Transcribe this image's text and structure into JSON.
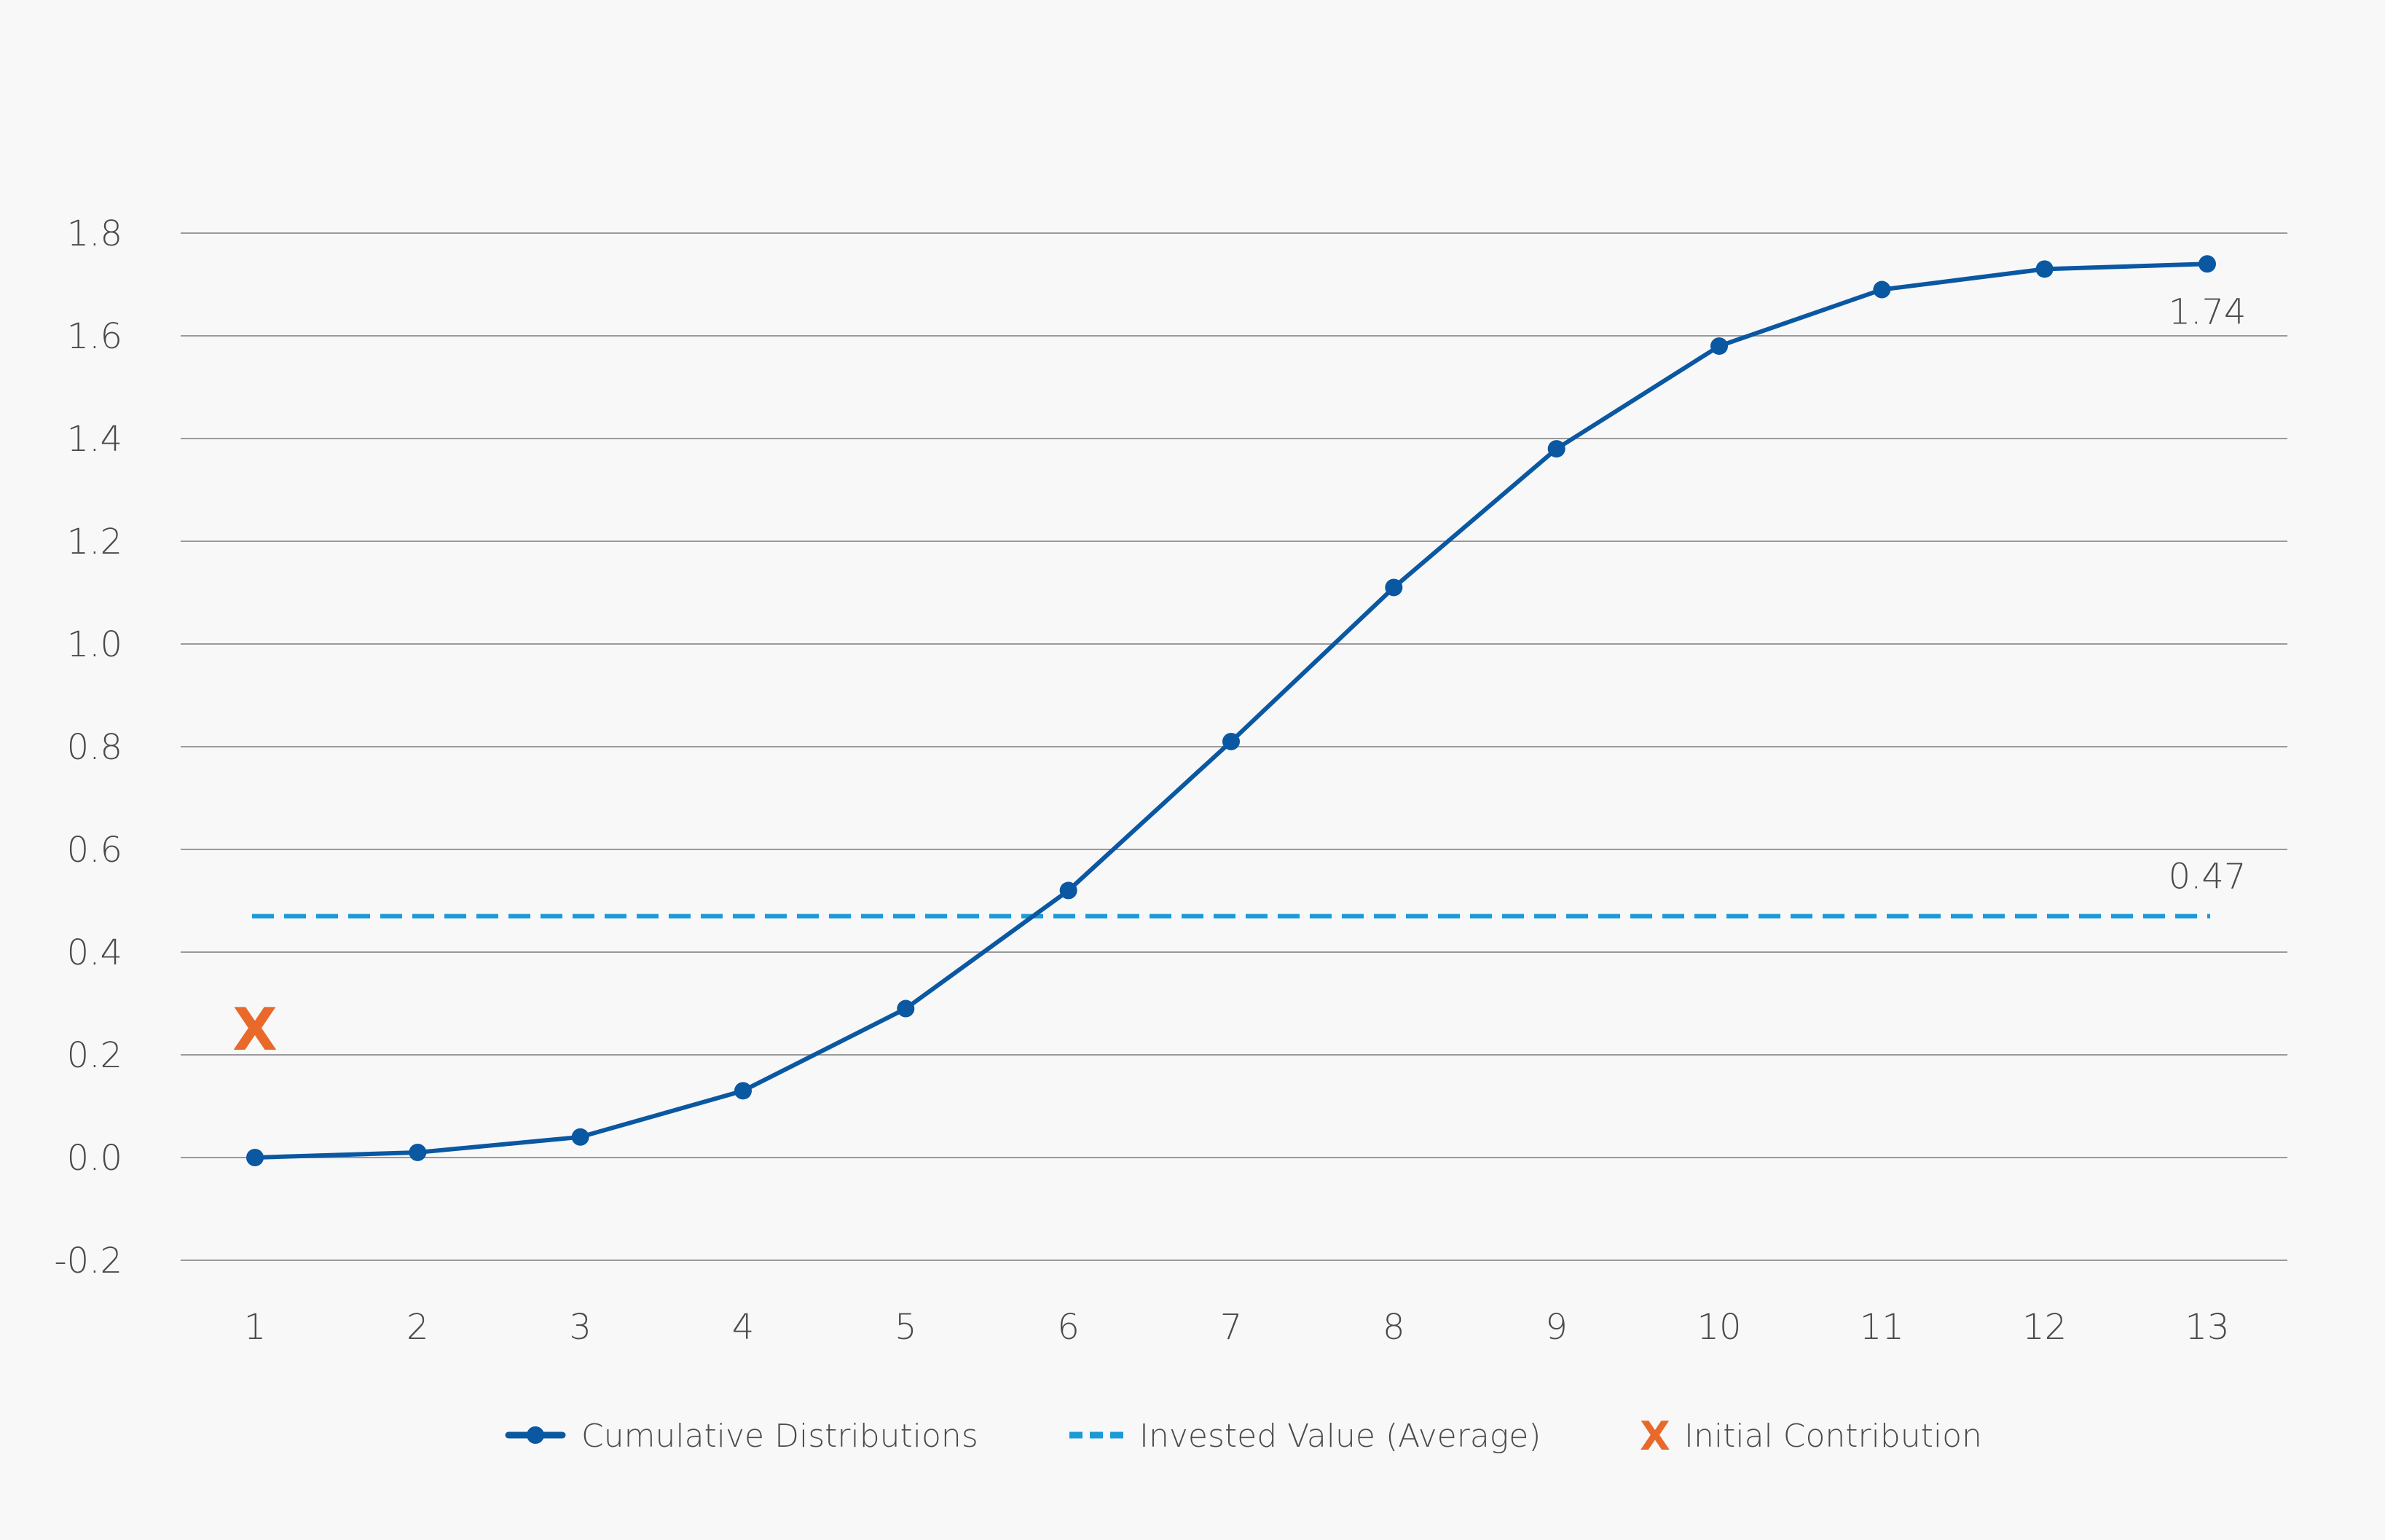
{
  "chart_data": {
    "type": "line",
    "x": [
      1,
      2,
      3,
      4,
      5,
      6,
      7,
      8,
      9,
      10,
      11,
      12,
      13
    ],
    "ylim": [
      -0.2,
      1.8
    ],
    "yticks": [
      "-0.2",
      "0.0",
      "0.2",
      "0.4",
      "0.6",
      "0.8",
      "1.0",
      "1.2",
      "1.4",
      "1.6",
      "1.8"
    ],
    "grid": true,
    "legend_position": "bottom",
    "series": [
      {
        "name": "Cumulative Distributions",
        "style": "line-markers",
        "color": "#0a57a2",
        "values": [
          0.0,
          0.01,
          0.04,
          0.13,
          0.29,
          0.52,
          0.81,
          1.11,
          1.38,
          1.58,
          1.69,
          1.73,
          1.74
        ],
        "end_label": "1.74"
      },
      {
        "name": "Invested Value (Average)",
        "style": "dashed",
        "color": "#1a9ad6",
        "constant": 0.47,
        "end_label": "0.47"
      },
      {
        "name": "Initial Contribution",
        "style": "x-marker",
        "color": "#e8692a",
        "point": {
          "x": 1,
          "y": 0.25
        },
        "symbol": "X"
      }
    ]
  }
}
